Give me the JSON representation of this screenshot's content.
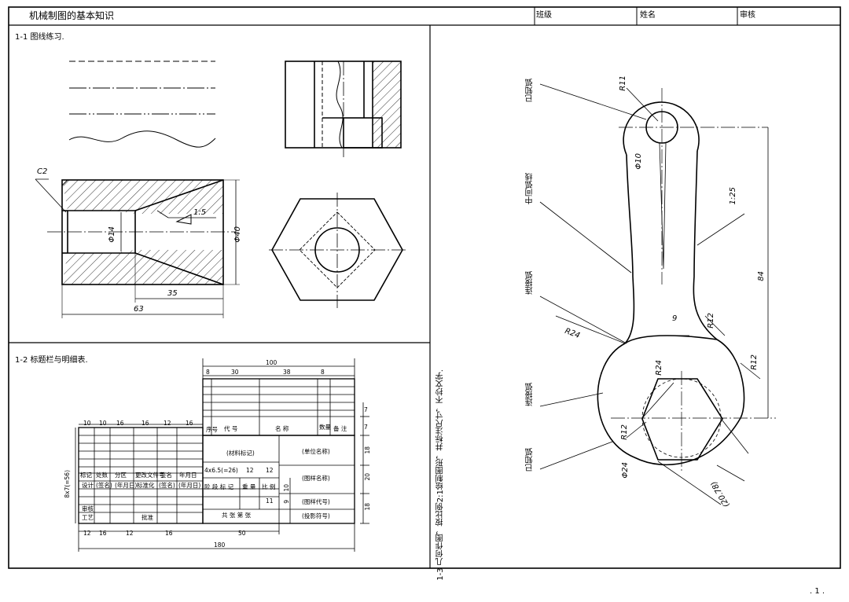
{
  "header": {
    "title": "机械制图的基本知识",
    "class_label": "班级",
    "name_label": "姓名",
    "review_label": "审核"
  },
  "sections": {
    "s1": "1-1 图线练习.",
    "s2": "1-2 标题栏与明细表.",
    "s3": "1-3 几何作图，按比例2:1绘制图形，并标注尺寸，不抄文字."
  },
  "part1": {
    "c2": "C2",
    "taper": "1:5",
    "d14": "Φ14",
    "d40": "Φ40",
    "dim35": "35",
    "dim63": "63"
  },
  "title_block": {
    "seq": "序号",
    "code": "代 号",
    "name": "名 称",
    "qty": "数量",
    "remark": "备 注",
    "material": "(材料标记)",
    "unit": "(单位名称)",
    "drawing_name": "(图样名称)",
    "drawing_code": "(图样代号)",
    "projection": "(投影符号)",
    "dim_100": "100",
    "dim_8a": "8",
    "dim_30a": "30",
    "dim_38": "38",
    "dim_8b": "8",
    "dim_7a": "7",
    "dim_7b": "7",
    "dim_10a": "10",
    "dim_10b": "10",
    "dim_16a": "16",
    "dim_16b": "16",
    "dim_12a": "12",
    "dim_16c": "16",
    "dim_12b": "12",
    "dim_16d": "16",
    "dim_12c": "12",
    "dim_16e": "16",
    "dim_50": "50",
    "dim_180": "180",
    "dim_8x7": "8x7(=56)",
    "dim_18a": "18",
    "dim_20": "20",
    "dim_18b": "18",
    "dim_10v": "10",
    "dim_9v": "9",
    "dim_11": "11",
    "dim_65": "4x6.5(=26)",
    "dim_12d": "12",
    "dim_12e": "12",
    "row_bj": "标记",
    "row_cs": "处数",
    "row_fq": "分区",
    "row_gw": "更改文件号",
    "row_qm": "签名",
    "row_ny": "年月日",
    "row_sj": "设计",
    "row_qm2": "(签名)",
    "row_ny2": "(年月日)",
    "row_bzh": "标准化",
    "row_qm3": "(签名)",
    "row_ny3": "(年月日)",
    "row_sh": "审核",
    "row_gy": "工艺",
    "row_pz": "批准",
    "stage": "阶 段 标 记",
    "weight": "重 量",
    "scale": "比 例",
    "sheets": "共 张 第 张"
  },
  "part3": {
    "label_known1": "已知弧",
    "label_mid": "中间弧线",
    "label_conn1": "连接弧",
    "label_conn2": "连接弧",
    "label_known2": "已知弧",
    "r11": "R11",
    "d10": "Φ10",
    "slope": "1:25",
    "dim84": "84",
    "dim9": "9",
    "r12a": "R12",
    "r24a": "R24",
    "r24b": "R24",
    "r12b": "R12",
    "r12c": "R12",
    "d24": "Φ24",
    "dim2078": "(20.78)"
  },
  "page_number": ". 1 ."
}
